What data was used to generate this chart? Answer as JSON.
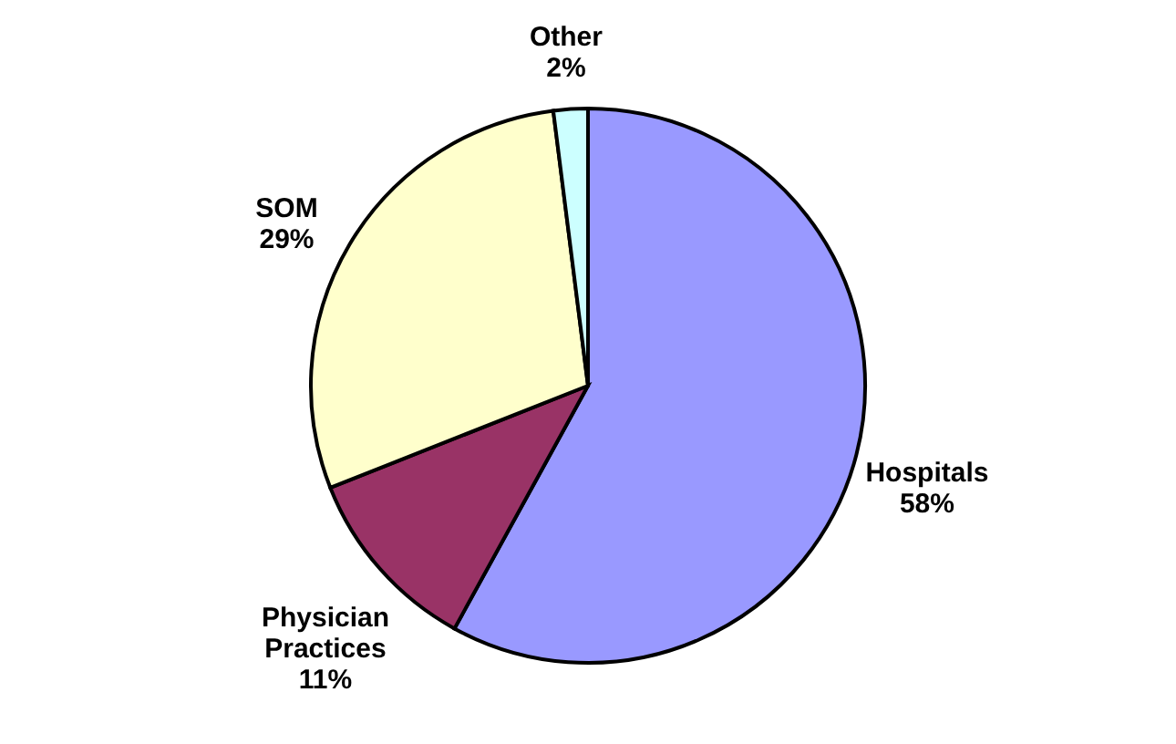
{
  "chart_data": {
    "type": "pie",
    "categories": [
      "Hospitals",
      "Physician Practices",
      "SOM",
      "Other"
    ],
    "values": [
      58,
      11,
      29,
      2
    ],
    "value_labels": [
      "58%",
      "11%",
      "29%",
      "2%"
    ],
    "colors": [
      "#9999ff",
      "#993366",
      "#ffffcc",
      "#ccffff"
    ],
    "legend": false
  }
}
